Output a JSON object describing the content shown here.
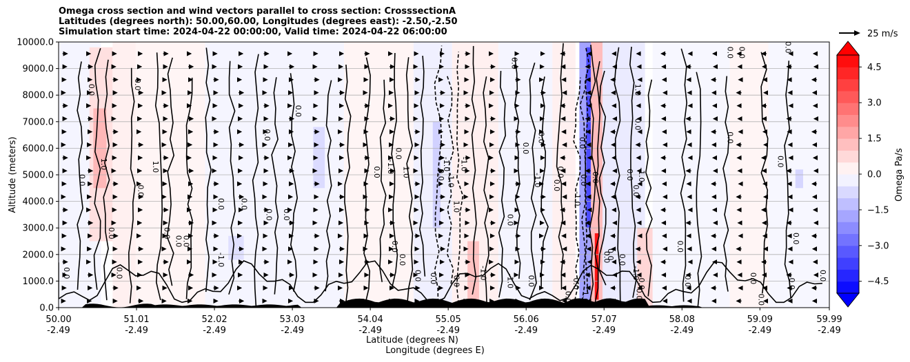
{
  "chart_data": {
    "type": "heatmap",
    "title_lines": [
      "Omega cross section and wind vectors parallel to cross section: CrosssectionA",
      "Latitudes (degrees north): 50.00,60.00, Longitudes (degrees east): -2.50,-2.50",
      "Simulation start time: 2024-04-22 00:00:00, Valid time: 2024-04-22 06:00:00"
    ],
    "xlabel_lines": [
      "Latitude (degrees N)",
      "Longitude (degrees E)"
    ],
    "ylabel": "Altitude (meters)",
    "xlim": [
      50.0,
      59.99
    ],
    "ylim": [
      0,
      10000
    ],
    "x_ticks": [
      {
        "lat": 50.0,
        "lat_label": "50.00",
        "lon_label": "-2.49"
      },
      {
        "lat": 51.01,
        "lat_label": "51.01",
        "lon_label": "-2.49"
      },
      {
        "lat": 52.02,
        "lat_label": "52.02",
        "lon_label": "-2.49"
      },
      {
        "lat": 53.03,
        "lat_label": "53.03",
        "lon_label": "-2.49"
      },
      {
        "lat": 54.04,
        "lat_label": "54.04",
        "lon_label": "-2.49"
      },
      {
        "lat": 55.05,
        "lat_label": "55.05",
        "lon_label": "-2.49"
      },
      {
        "lat": 56.06,
        "lat_label": "56.06",
        "lon_label": "-2.49"
      },
      {
        "lat": 57.07,
        "lat_label": "57.07",
        "lon_label": "-2.49"
      },
      {
        "lat": 58.08,
        "lat_label": "58.08",
        "lon_label": "-2.49"
      },
      {
        "lat": 59.09,
        "lat_label": "59.09",
        "lon_label": "-2.49"
      },
      {
        "lat": 59.99,
        "lat_label": "59.99",
        "lon_label": "-2.49"
      }
    ],
    "y_ticks": [
      {
        "value": 0,
        "label": "0.0"
      },
      {
        "value": 1000,
        "label": "1000.0"
      },
      {
        "value": 2000,
        "label": "2000.0"
      },
      {
        "value": 3000,
        "label": "3000.0"
      },
      {
        "value": 4000,
        "label": "4000.0"
      },
      {
        "value": 5000,
        "label": "5000.0"
      },
      {
        "value": 6000,
        "label": "6000.0"
      },
      {
        "value": 7000,
        "label": "7000.0"
      },
      {
        "value": 8000,
        "label": "8000.0"
      },
      {
        "value": 9000,
        "label": "9000.0"
      },
      {
        "value": 10000,
        "label": "10000.0"
      }
    ],
    "grid": "horizontal",
    "colorbar": {
      "label": "Omega Pa/s",
      "range": [
        -5,
        5
      ],
      "extend": "both",
      "ticks": [
        {
          "value": 4.5,
          "label": "4.5"
        },
        {
          "value": 3.0,
          "label": "3.0"
        },
        {
          "value": 1.5,
          "label": "1.5"
        },
        {
          "value": 0.0,
          "label": "0.0"
        },
        {
          "value": -1.5,
          "label": "−1.5"
        },
        {
          "value": -3.0,
          "label": "−3.0"
        },
        {
          "value": -4.5,
          "label": "−4.5"
        }
      ],
      "levels": [
        -5,
        -4.5,
        -4,
        -3.5,
        -3,
        -2.5,
        -2,
        -1.5,
        -1,
        -0.5,
        0,
        0.5,
        1,
        1.5,
        2,
        2.5,
        3,
        3.5,
        4,
        4.5,
        5
      ]
    },
    "quiver_key": {
      "label": "25 m/s",
      "speed": 25
    },
    "omega_zones": [
      {
        "lat_start": 50.0,
        "lat_end": 50.55,
        "alt_start": 0,
        "alt_end": 10000,
        "omega": -0.2
      },
      {
        "lat_start": 50.4,
        "lat_end": 50.7,
        "alt_start": 2500,
        "alt_end": 9800,
        "omega": 0.6
      },
      {
        "lat_start": 50.45,
        "lat_end": 50.62,
        "alt_start": 4500,
        "alt_end": 7500,
        "omega": 1.4
      },
      {
        "lat_start": 50.7,
        "lat_end": 51.0,
        "alt_start": 0,
        "alt_end": 10000,
        "omega": 0.3
      },
      {
        "lat_start": 51.0,
        "lat_end": 51.9,
        "alt_start": 0,
        "alt_end": 10000,
        "omega": 0.2
      },
      {
        "lat_start": 51.9,
        "lat_end": 53.7,
        "alt_start": 0,
        "alt_end": 10000,
        "omega": -0.2
      },
      {
        "lat_start": 53.3,
        "lat_end": 53.45,
        "alt_start": 4500,
        "alt_end": 6800,
        "omega": -0.7
      },
      {
        "lat_start": 52.2,
        "lat_end": 52.4,
        "alt_start": 1800,
        "alt_end": 2700,
        "omega": -0.6
      },
      {
        "lat_start": 53.7,
        "lat_end": 54.6,
        "alt_start": 0,
        "alt_end": 10000,
        "omega": 0.2
      },
      {
        "lat_start": 54.6,
        "lat_end": 55.1,
        "alt_start": 0,
        "alt_end": 10000,
        "omega": -0.3
      },
      {
        "lat_start": 54.85,
        "lat_end": 54.95,
        "alt_start": 3000,
        "alt_end": 7000,
        "omega": -0.9
      },
      {
        "lat_start": 55.1,
        "lat_end": 55.7,
        "alt_start": 0,
        "alt_end": 10000,
        "omega": 0.3
      },
      {
        "lat_start": 55.3,
        "lat_end": 55.45,
        "alt_start": 0,
        "alt_end": 2500,
        "omega": 1.2
      },
      {
        "lat_start": 55.7,
        "lat_end": 56.4,
        "alt_start": 0,
        "alt_end": 10000,
        "omega": -0.2
      },
      {
        "lat_start": 56.4,
        "lat_end": 56.7,
        "alt_start": 0,
        "alt_end": 10000,
        "omega": 0.3
      },
      {
        "lat_start": 56.75,
        "lat_end": 56.95,
        "alt_start": 0,
        "alt_end": 10000,
        "omega": -1.8
      },
      {
        "lat_start": 56.84,
        "lat_end": 56.9,
        "alt_start": 3000,
        "alt_end": 9800,
        "omega": -3.5
      },
      {
        "lat_start": 56.9,
        "lat_end": 57.05,
        "alt_start": 0,
        "alt_end": 10000,
        "omega": 1.3
      },
      {
        "lat_start": 56.95,
        "lat_end": 57.0,
        "alt_start": 300,
        "alt_end": 2800,
        "omega": 4.6
      },
      {
        "lat_start": 57.05,
        "lat_end": 57.6,
        "alt_start": 0,
        "alt_end": 10000,
        "omega": -0.4
      },
      {
        "lat_start": 57.5,
        "lat_end": 57.7,
        "alt_start": 0,
        "alt_end": 3000,
        "omega": 0.8
      },
      {
        "lat_start": 57.7,
        "lat_end": 58.7,
        "alt_start": 0,
        "alt_end": 10000,
        "omega": -0.15
      },
      {
        "lat_start": 58.7,
        "lat_end": 59.2,
        "alt_start": 0,
        "alt_end": 10000,
        "omega": 0.2
      },
      {
        "lat_start": 59.2,
        "lat_end": 59.99,
        "alt_start": 0,
        "alt_end": 10000,
        "omega": -0.15
      },
      {
        "lat_start": 59.55,
        "lat_end": 59.65,
        "alt_start": 4500,
        "alt_end": 5200,
        "omega": -0.8
      }
    ],
    "contour_labels": [
      {
        "lat": 50.1,
        "alt": 1300,
        "text": "0.0"
      },
      {
        "lat": 50.3,
        "alt": 4800,
        "text": "0.0"
      },
      {
        "lat": 50.42,
        "alt": 8200,
        "text": "0.0"
      },
      {
        "lat": 50.58,
        "alt": 5400,
        "text": "1.0"
      },
      {
        "lat": 50.68,
        "alt": 2800,
        "text": "0.0"
      },
      {
        "lat": 50.78,
        "alt": 1300,
        "text": "0.0"
      },
      {
        "lat": 51.06,
        "alt": 4400,
        "text": "0.0"
      },
      {
        "lat": 51.02,
        "alt": 8400,
        "text": "0.0"
      },
      {
        "lat": 51.25,
        "alt": 5300,
        "text": "1.0"
      },
      {
        "lat": 51.4,
        "alt": 2800,
        "text": "0.0"
      },
      {
        "lat": 51.55,
        "alt": 2500,
        "text": "0.0"
      },
      {
        "lat": 51.65,
        "alt": 2500,
        "text": "0.0"
      },
      {
        "lat": 52.1,
        "alt": 1800,
        "text": "-1.0"
      },
      {
        "lat": 52.1,
        "alt": 3900,
        "text": "0.0"
      },
      {
        "lat": 52.4,
        "alt": 3900,
        "text": "0.0"
      },
      {
        "lat": 52.7,
        "alt": 6500,
        "text": "0.0"
      },
      {
        "lat": 52.72,
        "alt": 3500,
        "text": "0.0"
      },
      {
        "lat": 52.95,
        "alt": 3500,
        "text": "0.0"
      },
      {
        "lat": 53.1,
        "alt": 7400,
        "text": "0.0"
      },
      {
        "lat": 54.12,
        "alt": 5100,
        "text": "0.0"
      },
      {
        "lat": 54.3,
        "alt": 5300,
        "text": "-1.0"
      },
      {
        "lat": 54.35,
        "alt": 2300,
        "text": "0.0"
      },
      {
        "lat": 54.4,
        "alt": 5800,
        "text": "0.0"
      },
      {
        "lat": 54.45,
        "alt": 1800,
        "text": "0.0"
      },
      {
        "lat": 54.5,
        "alt": 5100,
        "text": "1.0"
      },
      {
        "lat": 54.65,
        "alt": 1200,
        "text": "0.0"
      },
      {
        "lat": 54.85,
        "alt": 1100,
        "text": "0.0"
      },
      {
        "lat": 54.95,
        "alt": 5000,
        "text": "0.0"
      },
      {
        "lat": 55.08,
        "alt": 4800,
        "text": "-1.0"
      },
      {
        "lat": 55.02,
        "alt": 5400,
        "text": "-1.0"
      },
      {
        "lat": 55.15,
        "alt": 1000,
        "text": "0.0"
      },
      {
        "lat": 55.25,
        "alt": 5400,
        "text": "-1.0"
      },
      {
        "lat": 55.15,
        "alt": 3800,
        "text": "1.0"
      },
      {
        "lat": 55.5,
        "alt": 1300,
        "text": "-1.0"
      },
      {
        "lat": 55.85,
        "alt": 3300,
        "text": "0.0"
      },
      {
        "lat": 55.85,
        "alt": 1000,
        "text": "-1.0"
      },
      {
        "lat": 55.9,
        "alt": 9200,
        "text": "0.0"
      },
      {
        "lat": 56.05,
        "alt": 6000,
        "text": "0.0"
      },
      {
        "lat": 56.12,
        "alt": 1000,
        "text": "0.0"
      },
      {
        "lat": 56.2,
        "alt": 4800,
        "text": "-1.0"
      },
      {
        "lat": 56.25,
        "alt": 6400,
        "text": "0.0"
      },
      {
        "lat": 56.45,
        "alt": 4600,
        "text": "0.0"
      },
      {
        "lat": 56.5,
        "alt": 5100,
        "text": "0.0"
      },
      {
        "lat": 56.6,
        "alt": 400,
        "text": "0.0"
      },
      {
        "lat": 56.7,
        "alt": 900,
        "text": "0.0"
      },
      {
        "lat": 56.72,
        "alt": 4100,
        "text": "-1.0"
      },
      {
        "lat": 56.78,
        "alt": 6200,
        "text": "0.0"
      },
      {
        "lat": 56.8,
        "alt": 4800,
        "text": "0.0"
      },
      {
        "lat": 56.82,
        "alt": 400,
        "text": "1.0"
      },
      {
        "lat": 56.95,
        "alt": 4900,
        "text": "0.0"
      },
      {
        "lat": 57.1,
        "alt": 1900,
        "text": "0.0"
      },
      {
        "lat": 57.15,
        "alt": 2000,
        "text": "0.0"
      },
      {
        "lat": 57.3,
        "alt": 1800,
        "text": "0.0"
      },
      {
        "lat": 57.4,
        "alt": 5000,
        "text": "0.0"
      },
      {
        "lat": 57.48,
        "alt": 1300,
        "text": "-1.0"
      },
      {
        "lat": 57.48,
        "alt": 4400,
        "text": "0.0"
      },
      {
        "lat": 57.55,
        "alt": 5000,
        "text": "-1.0"
      },
      {
        "lat": 57.55,
        "alt": 900,
        "text": "0.0"
      },
      {
        "lat": 57.5,
        "alt": 6900,
        "text": "0.0"
      },
      {
        "lat": 57.5,
        "alt": 8200,
        "text": "1.0"
      },
      {
        "lat": 57.52,
        "alt": 500,
        "text": "0.0"
      },
      {
        "lat": 58.05,
        "alt": 2300,
        "text": "0.0"
      },
      {
        "lat": 58.15,
        "alt": 1000,
        "text": "0.0"
      },
      {
        "lat": 58.7,
        "alt": 6400,
        "text": "0.0"
      },
      {
        "lat": 58.7,
        "alt": 9600,
        "text": "0.0"
      },
      {
        "lat": 58.85,
        "alt": 9600,
        "text": "0.0"
      },
      {
        "lat": 59.0,
        "alt": 1100,
        "text": "0.0"
      },
      {
        "lat": 59.1,
        "alt": 300,
        "text": "0.0"
      },
      {
        "lat": 59.35,
        "alt": 5500,
        "text": "0.0"
      },
      {
        "lat": 59.5,
        "alt": 900,
        "text": "0.0"
      },
      {
        "lat": 59.55,
        "alt": 2600,
        "text": "0.0"
      },
      {
        "lat": 59.45,
        "alt": 9800,
        "text": "0.0"
      },
      {
        "lat": 59.9,
        "alt": 1200,
        "text": "0.0"
      }
    ]
  }
}
